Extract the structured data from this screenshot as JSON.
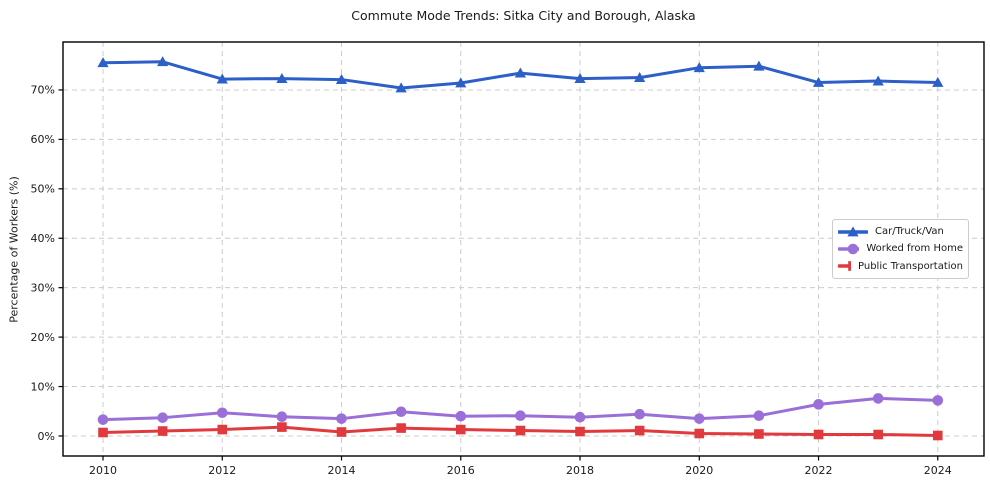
{
  "chart_data": {
    "type": "line",
    "title": "Commute Mode Trends: Sitka City and Borough, Alaska",
    "xlabel": "",
    "ylabel": "Percentage of Workers (%)",
    "x": [
      2010,
      2011,
      2012,
      2013,
      2014,
      2015,
      2016,
      2017,
      2018,
      2019,
      2020,
      2021,
      2022,
      2023,
      2024
    ],
    "series": [
      {
        "id": "car-truck-van",
        "name": "Car/Truck/Van",
        "color": "#2c5fc8",
        "marker": "triangle-up",
        "values": [
          75.5,
          75.7,
          72.2,
          72.3,
          72.1,
          70.4,
          71.4,
          73.4,
          72.3,
          72.5,
          74.5,
          74.8,
          71.5,
          71.8,
          71.5
        ]
      },
      {
        "id": "worked-from-home",
        "name": "Worked from Home",
        "color": "#9a70d8",
        "marker": "circle",
        "values": [
          3.3,
          3.7,
          4.7,
          3.9,
          3.5,
          4.9,
          4.0,
          4.1,
          3.8,
          4.4,
          3.5,
          4.1,
          6.4,
          7.6,
          7.2
        ]
      },
      {
        "id": "public-transportation",
        "name": "Public Transportation",
        "color": "#e03a3e",
        "marker": "square",
        "values": [
          0.7,
          1.0,
          1.3,
          1.8,
          0.8,
          1.6,
          1.3,
          1.1,
          0.9,
          1.1,
          0.5,
          0.4,
          0.3,
          0.3,
          0.1
        ]
      }
    ],
    "x_ticks": [
      {
        "v": 2010,
        "label": "2010"
      },
      {
        "v": 2012,
        "label": "2012"
      },
      {
        "v": 2014,
        "label": "2014"
      },
      {
        "v": 2016,
        "label": "2016"
      },
      {
        "v": 2018,
        "label": "2018"
      },
      {
        "v": 2020,
        "label": "2020"
      },
      {
        "v": 2022,
        "label": "2022"
      },
      {
        "v": 2024,
        "label": "2024"
      }
    ],
    "y_ticks": [
      {
        "v": 0,
        "label": "0%"
      },
      {
        "v": 10,
        "label": "10%"
      },
      {
        "v": 20,
        "label": "20%"
      },
      {
        "v": 30,
        "label": "30%"
      },
      {
        "v": 40,
        "label": "40%"
      },
      {
        "v": 50,
        "label": "50%"
      },
      {
        "v": 60,
        "label": "60%"
      },
      {
        "v": 70,
        "label": "70%"
      }
    ],
    "x_range": [
      2009.329,
      2024.775
    ],
    "y_range": [
      -4.05,
      79.7
    ],
    "grid": true,
    "legend_position": "center-right",
    "style": {
      "grid_color": "#cccccc",
      "frame_color": "#000000",
      "text_color": "#1a1a1a",
      "background": "#ffffff",
      "tick_font_px": 11,
      "line_width": 3
    }
  }
}
